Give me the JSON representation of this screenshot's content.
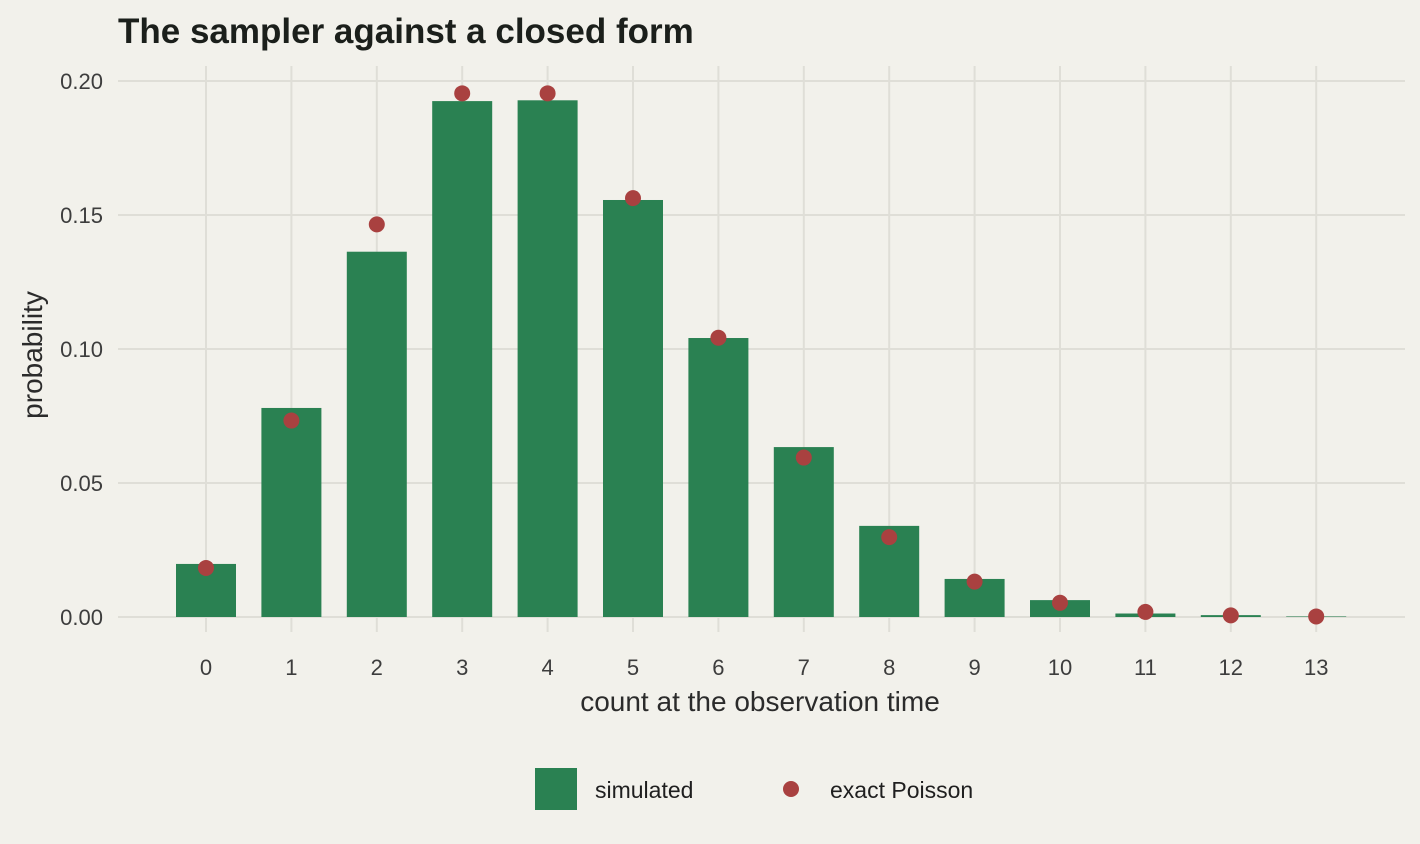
{
  "chart_data": {
    "type": "bar",
    "title": "The sampler against a closed form",
    "xlabel": "count at the observation time",
    "ylabel": "probability",
    "categories": [
      "0",
      "1",
      "2",
      "3",
      "4",
      "5",
      "6",
      "7",
      "8",
      "9",
      "10",
      "11",
      "12",
      "13"
    ],
    "series": [
      {
        "name": "simulated",
        "kind": "bar",
        "color": "#2a8152",
        "values": [
          0.0198,
          0.078,
          0.1363,
          0.1925,
          0.1928,
          0.1556,
          0.1041,
          0.0634,
          0.034,
          0.0142,
          0.0063,
          0.0013,
          0.0007,
          0.0002
        ]
      },
      {
        "name": "exact Poisson",
        "kind": "point",
        "color": "#a94140",
        "values": [
          0.0183,
          0.0733,
          0.1465,
          0.1954,
          0.1954,
          0.1563,
          0.1042,
          0.0595,
          0.0298,
          0.0132,
          0.0053,
          0.0019,
          0.0006,
          0.0002
        ]
      }
    ],
    "ylim": [
      0,
      0.205
    ],
    "yticks": [
      "0.00",
      "0.05",
      "0.10",
      "0.15",
      "0.20"
    ],
    "ytick_values": [
      0,
      0.05,
      0.1,
      0.15,
      0.2
    ],
    "grid": true,
    "legend_position": "bottom"
  }
}
